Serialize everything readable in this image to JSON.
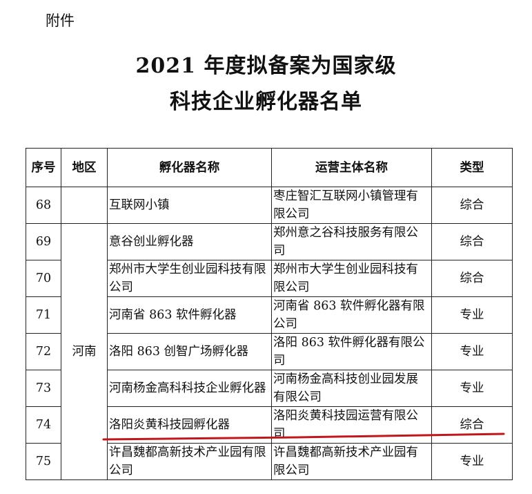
{
  "attachment_label": "附件",
  "title_line1": "2021 年度拟备案为国家级",
  "title_line2": "科技企业孵化器名单",
  "table": {
    "headers": [
      "序号",
      "地区",
      "孵化器名称",
      "运营主体名称",
      "类型"
    ],
    "region_henan": "河南",
    "rows": [
      {
        "no": "68",
        "incubator": "互联网小镇",
        "operator": "枣庄智汇互联网小镇管理有限公司",
        "type": "综合"
      },
      {
        "no": "69",
        "incubator": "意谷创业孵化器",
        "operator": "郑州意之谷科技服务有限公司",
        "type": "综合"
      },
      {
        "no": "70",
        "incubator": "郑州市大学生创业园科技有限公司",
        "operator": "郑州市大学生创业园科技有限公司",
        "type": "综合"
      },
      {
        "no": "71",
        "incubator": "河南省 863 软件孵化器",
        "operator": "河南省 863 软件孵化器有限公司",
        "type": "专业"
      },
      {
        "no": "72",
        "incubator": "洛阳 863 创智广场孵化器",
        "operator": "洛阳 863 软件孵化器有限公司",
        "type": "专业"
      },
      {
        "no": "73",
        "incubator": "河南杨金高科科技企业孵化器",
        "operator": "河南杨金高科技创业园发展有限公司",
        "type": "专业"
      },
      {
        "no": "74",
        "incubator": "洛阳炎黄科技园孵化器",
        "operator": "洛阳炎黄科技园运营有限公司",
        "type": "综合",
        "underlined": true
      },
      {
        "no": "75",
        "incubator": "许昌魏都高新技术产业园有限公司",
        "operator": "许昌魏都高新技术产业园有限公司",
        "type": "专业"
      }
    ]
  },
  "colors": {
    "underline": "#c0161c"
  }
}
